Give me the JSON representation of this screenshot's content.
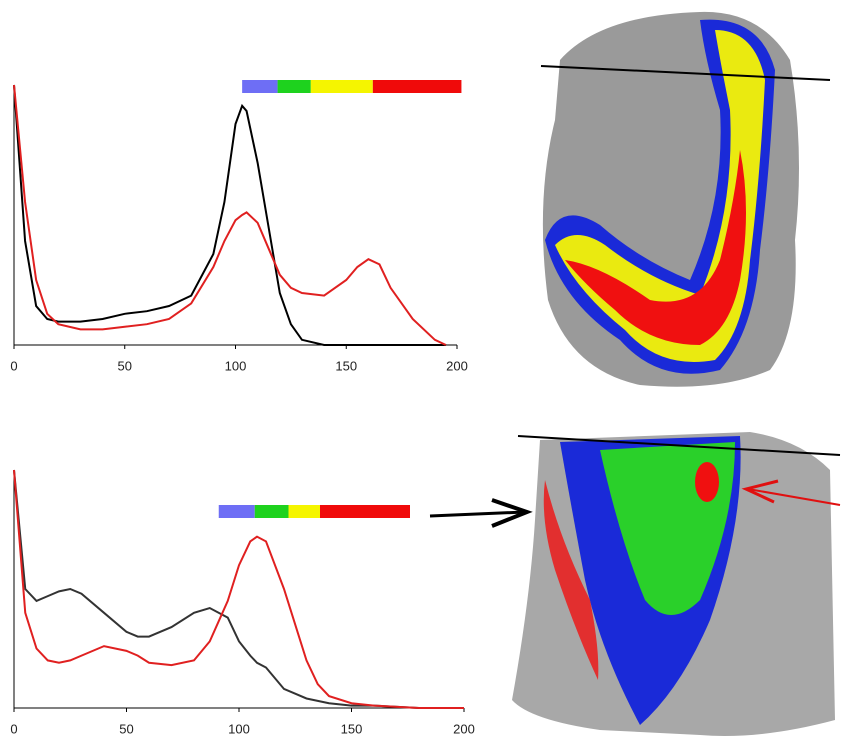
{
  "chart_data": [
    {
      "type": "line",
      "x": [
        0,
        5,
        10,
        15,
        20,
        30,
        40,
        50,
        60,
        70,
        80,
        90,
        95,
        100,
        103,
        105,
        110,
        115,
        120,
        125,
        130,
        140,
        150,
        155,
        160,
        165,
        170,
        180,
        190,
        195
      ],
      "series": [
        {
          "color": "#000000",
          "values": [
            100,
            40,
            15,
            10,
            9,
            9,
            10,
            12,
            13,
            15,
            19,
            35,
            55,
            85,
            92,
            90,
            70,
            45,
            20,
            8,
            2,
            0,
            0,
            0,
            0,
            0,
            0,
            0,
            0,
            0
          ]
        },
        {
          "color": "#e02020",
          "values": [
            100,
            55,
            25,
            12,
            8,
            6,
            6,
            7,
            8,
            10,
            16,
            30,
            40,
            48,
            50,
            51,
            47,
            37,
            27,
            22,
            20,
            19,
            25,
            30,
            33,
            31,
            22,
            10,
            2,
            0
          ]
        }
      ],
      "xlim": [
        0,
        200
      ],
      "xticks": [
        0,
        50,
        100,
        150,
        200
      ],
      "ylim": [
        0,
        100
      ],
      "colorbar": [
        {
          "color": "#6e6ef5",
          "from": 103,
          "to": 119
        },
        {
          "color": "#1ed21e",
          "from": 119,
          "to": 134
        },
        {
          "color": "#f5f500",
          "from": 134,
          "to": 162
        },
        {
          "color": "#f00a0a",
          "from": 162,
          "to": 202
        }
      ]
    },
    {
      "type": "line",
      "x": [
        0,
        5,
        10,
        15,
        20,
        25,
        30,
        40,
        50,
        55,
        60,
        70,
        80,
        87,
        95,
        100,
        105,
        108,
        112,
        120,
        125,
        130,
        135,
        140,
        150,
        160,
        180,
        200
      ],
      "series": [
        {
          "color": "#333333",
          "values": [
            100,
            50,
            45,
            47,
            49,
            50,
            48,
            40,
            32,
            30,
            30,
            34,
            40,
            42,
            38,
            28,
            22,
            19,
            17,
            8,
            6,
            4,
            3,
            2,
            1,
            1,
            0,
            0
          ]
        },
        {
          "color": "#e02020",
          "values": [
            100,
            40,
            25,
            20,
            19,
            20,
            22,
            26,
            24,
            22,
            19,
            18,
            20,
            28,
            45,
            60,
            70,
            72,
            70,
            50,
            35,
            20,
            10,
            5,
            2,
            1,
            0,
            0
          ]
        }
      ],
      "xlim": [
        0,
        200
      ],
      "xticks": [
        0,
        50,
        100,
        150,
        200
      ],
      "ylim": [
        0,
        100
      ],
      "colorbar": [
        {
          "color": "#6e6ef5",
          "from": 91,
          "to": 107
        },
        {
          "color": "#1ed21e",
          "from": 107,
          "to": 122
        },
        {
          "color": "#f5f500",
          "from": 122,
          "to": 136
        },
        {
          "color": "#f00a0a",
          "from": 136,
          "to": 176
        }
      ]
    }
  ]
}
